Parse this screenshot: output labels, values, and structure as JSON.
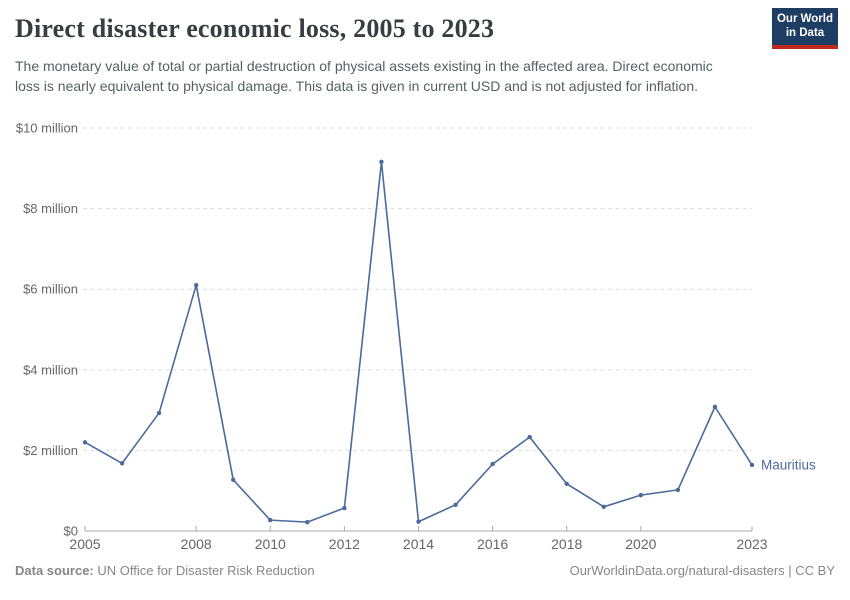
{
  "chart_data": {
    "type": "line",
    "title": "Direct disaster economic loss, 2005 to 2023",
    "subtitle": "The monetary value of total or partial destruction of physical assets existing in the affected area. Direct economic loss is nearly equivalent to physical damage. This data is given in current USD and is not adjusted for inflation.",
    "x": [
      2005,
      2006,
      2007,
      2008,
      2009,
      2010,
      2011,
      2012,
      2013,
      2014,
      2015,
      2016,
      2017,
      2018,
      2019,
      2020,
      2021,
      2022,
      2023
    ],
    "series": [
      {
        "name": "Mauritius",
        "color": "#4c6a9c",
        "values": [
          2.2,
          1.68,
          2.93,
          6.1,
          1.27,
          0.27,
          0.22,
          0.57,
          9.16,
          0.23,
          0.65,
          1.66,
          2.33,
          1.17,
          0.6,
          0.89,
          1.02,
          3.08,
          1.64
        ]
      }
    ],
    "values_unit": "million current USD",
    "ylim": [
      0,
      10
    ],
    "y_ticks": [
      0,
      2,
      4,
      6,
      8,
      10
    ],
    "y_tick_labels": [
      "$0",
      "$2 million",
      "$4 million",
      "$6 million",
      "$8 million",
      "$10 million"
    ],
    "x_ticks": [
      2005,
      2008,
      2010,
      2012,
      2014,
      2016,
      2018,
      2020,
      2023
    ],
    "grid": "horizontal dashed",
    "legend_position": "end-of-line entity label"
  },
  "header": {
    "logo": {
      "line1": "Our World",
      "line2": "in Data"
    }
  },
  "footer": {
    "datasource_label": "Data source:",
    "datasource": "UN Office for Disaster Risk Reduction",
    "link": "OurWorldinData.org/natural-disasters",
    "separator": " | ",
    "license": "CC BY"
  },
  "colors": {
    "line": "#4c6a9c",
    "gridline": "#dedede",
    "axis": "#a9a9a9",
    "tick_text": "#666666",
    "title_text": "#383d42",
    "logo_bg": "#1d3d63",
    "logo_accent": "#c0271d"
  }
}
